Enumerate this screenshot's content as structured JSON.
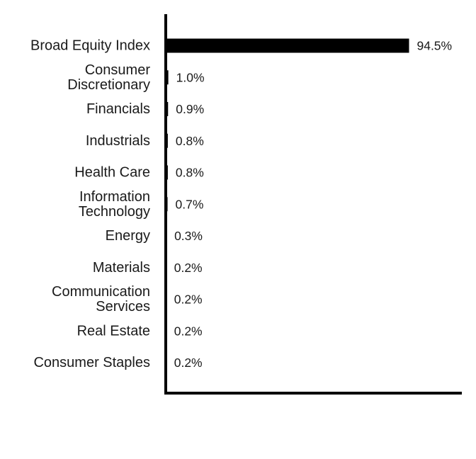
{
  "chart_data": {
    "type": "bar",
    "orientation": "horizontal",
    "categories": [
      [
        "Broad Equity Index"
      ],
      [
        "Consumer",
        "Discretionary"
      ],
      [
        "Financials"
      ],
      [
        "Industrials"
      ],
      [
        "Health Care"
      ],
      [
        "Information",
        "Technology"
      ],
      [
        "Energy"
      ],
      [
        "Materials"
      ],
      [
        "Communication",
        "Services"
      ],
      [
        "Real Estate"
      ],
      [
        "Consumer Staples"
      ]
    ],
    "values": [
      94.5,
      1.0,
      0.9,
      0.8,
      0.8,
      0.7,
      0.3,
      0.2,
      0.2,
      0.2,
      0.2
    ],
    "value_labels": [
      "94.5%",
      "1.0%",
      "0.9%",
      "0.8%",
      "0.8%",
      "0.7%",
      "0.3%",
      "0.2%",
      "0.2%",
      "0.2%",
      "0.2%"
    ],
    "title": "",
    "xlabel": "",
    "ylabel": "",
    "xlim": [
      0,
      115
    ],
    "grid": false,
    "legend": "none",
    "bar_color": "#000000"
  }
}
